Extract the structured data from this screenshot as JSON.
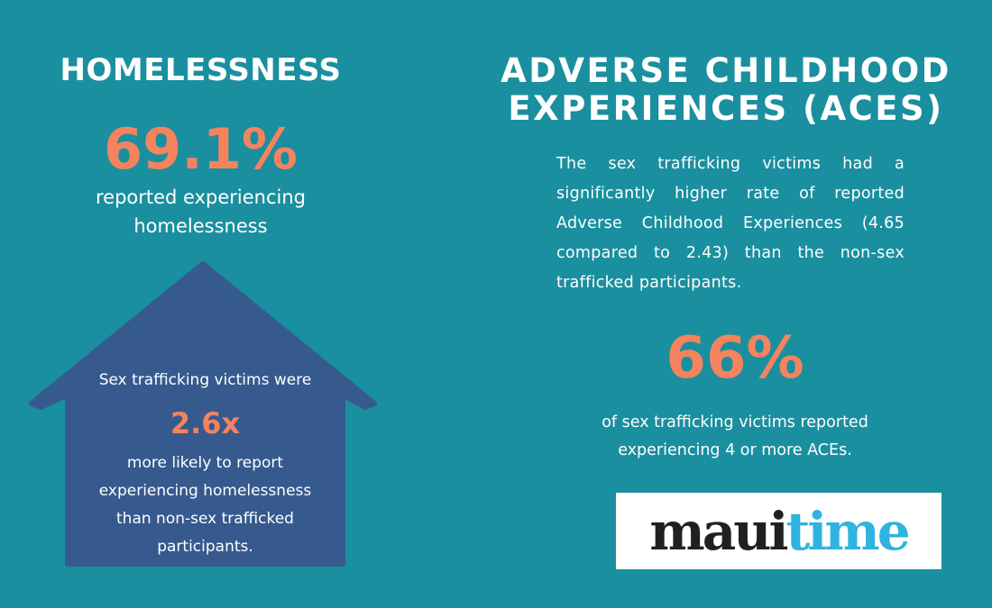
{
  "homelessness": {
    "title": "HOMELESSNESS",
    "stat": "69.1%",
    "description": "reported experiencing homelessness",
    "house": {
      "lead": "Sex trafficking victims were",
      "stat": "2.6x",
      "body": "more likely to report experiencing homelessness than non-sex trafficked participants."
    }
  },
  "aces": {
    "title_line1": "ADVERSE CHILDHOOD",
    "title_line2": "EXPERIENCES (ACES)",
    "paragraph": "The sex trafficking victims had a significantly higher rate of reported Adverse Childhood Experiences (4.65 compared to 2.43) than the non-sex trafficked participants.",
    "stat": "66%",
    "stat_description": "of sex trafficking victims reported experiencing 4 or more ACEs."
  },
  "logo": {
    "part1": "maui",
    "part2": "time"
  },
  "colors": {
    "background": "#1a8f9f",
    "accent": "#f4835e",
    "house": "#365a8e",
    "logo_dark": "#231f20",
    "logo_blue": "#2fb3e0"
  }
}
